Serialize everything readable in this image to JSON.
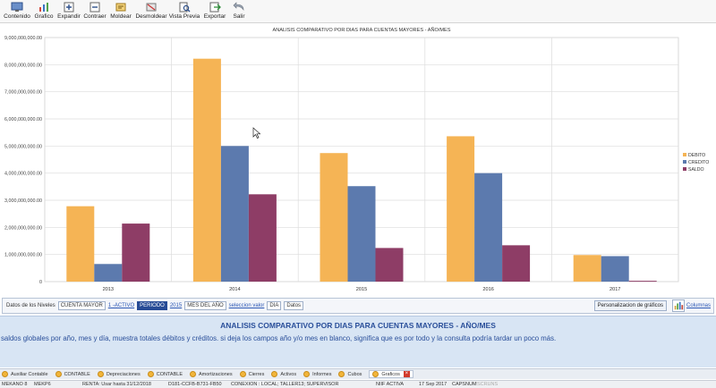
{
  "toolbar": {
    "buttons": [
      {
        "label": "Contenido",
        "icon": "monitor-icon"
      },
      {
        "label": "Grafico",
        "icon": "bar-chart-icon"
      },
      {
        "label": "Expandir",
        "icon": "expand-icon"
      },
      {
        "label": "Contraer",
        "icon": "collapse-icon"
      },
      {
        "label": "Moldear",
        "icon": "mold-icon"
      },
      {
        "label": "Desmoldear",
        "icon": "unmold-icon"
      },
      {
        "label": "Vista Previa",
        "icon": "preview-icon"
      },
      {
        "label": "Exportar",
        "icon": "export-icon"
      },
      {
        "label": "Salir",
        "icon": "exit-icon"
      }
    ]
  },
  "chart_data": {
    "type": "bar",
    "title": "ANALISIS COMPARATIVO POR DIAS PARA CUENTAS MAYORES - AÑO/MES",
    "categories": [
      "2013",
      "2014",
      "2015",
      "2016",
      "2017"
    ],
    "series": [
      {
        "name": "DEBITO",
        "color": "#F5B455",
        "values": [
          2780000000,
          8220000000,
          4740000000,
          5360000000,
          980000000
        ]
      },
      {
        "name": "CREDITO",
        "color": "#5C7AAE",
        "values": [
          650000000,
          5000000000,
          3520000000,
          4000000000,
          940000000
        ]
      },
      {
        "name": "SALDO",
        "color": "#8E3D66",
        "values": [
          2140000000,
          3220000000,
          1240000000,
          1340000000,
          30000000
        ]
      }
    ],
    "ylim": [
      0,
      9000000000
    ],
    "yticks": [
      "0",
      "1,000,000,000.00",
      "2,000,000,000.00",
      "3,000,000,000.00",
      "4,000,000,000.00",
      "5,000,000,000.00",
      "6,000,000,000.00",
      "7,000,000,000.00",
      "8,000,000,000.00",
      "9,000,000,000.00"
    ],
    "grid": true,
    "legend": "right"
  },
  "levels": {
    "label": "Datos de los Niveles",
    "cuenta_mayor": "CUENTA MAYOR",
    "activo": "1 -ACTIVO",
    "periodo": "PERIODO",
    "year": "2015",
    "mes_del_ano": "MES DEL AÑO",
    "seleccion": "seleccion valor",
    "dia": "DIA",
    "datos": "Datos",
    "personalizacion": "Personalizacion de gráficos",
    "columnas": "Columnas"
  },
  "info": {
    "title": "ANALISIS COMPARATIVO POR DIAS PARA CUENTAS MAYORES - AÑO/MES",
    "description": "saldos globales por año, mes y día, muestra totales débitos y créditos. si deja los campos año y/o mes en blanco, significa que es por todo y la consulta podría tardar un poco más."
  },
  "tabs": [
    {
      "label": "Auxiliar Contable"
    },
    {
      "label": "CONTABLE"
    },
    {
      "label": "Depreciaciones"
    },
    {
      "label": "CONTABLE"
    },
    {
      "label": "Amortizaciones"
    },
    {
      "label": "Cierres"
    },
    {
      "label": "Activos"
    },
    {
      "label": "Informes"
    },
    {
      "label": "Cubos"
    },
    {
      "label": "Graficos",
      "active": true
    }
  ],
  "status": {
    "app": "MEKANO 8",
    "company": "MEKP6",
    "renta": "RENTA: Usar hasta 31/12/2018",
    "code": "D181-CCFB-B731-FB50",
    "conexion": "CONEXION : LOCAL; TALLER13; SUPERVISOR",
    "niif": "NIIF ACTIVA",
    "date": "17  Sep  2017",
    "caps": "CAPS",
    "num": "NUM",
    "scrl": "SCRL",
    "ins": "INS"
  }
}
